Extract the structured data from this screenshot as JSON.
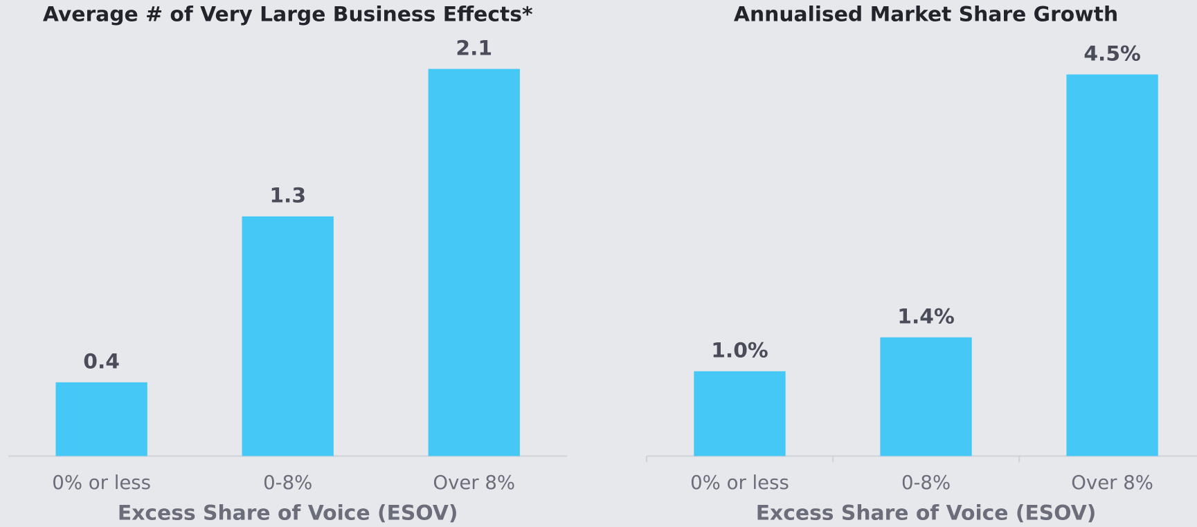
{
  "chart_data": [
    {
      "type": "bar",
      "title": "Average # of Very Large Business Effects*",
      "categories": [
        "0% or less",
        "0-8%",
        "Over 8%"
      ],
      "values": [
        0.4,
        1.3,
        2.1
      ],
      "color": "#45c8f5",
      "ylim": [
        0,
        2.3
      ],
      "x_label": "Excess Share of Voice (ESOV)",
      "category_ticks": false
    },
    {
      "type": "bar",
      "title": "Annualised Market Share Growth",
      "categories": [
        "0% or less",
        "0-8%",
        "Over 8%"
      ],
      "values": [
        1.0,
        1.4,
        4.5
      ],
      "value_labels": [
        "1.0%",
        "1.4%",
        "4.5%"
      ],
      "color": "#45c8f5",
      "ylim": [
        0,
        5
      ],
      "x_label": "Excess Share of Voice (ESOV)",
      "category_ticks": true
    }
  ]
}
